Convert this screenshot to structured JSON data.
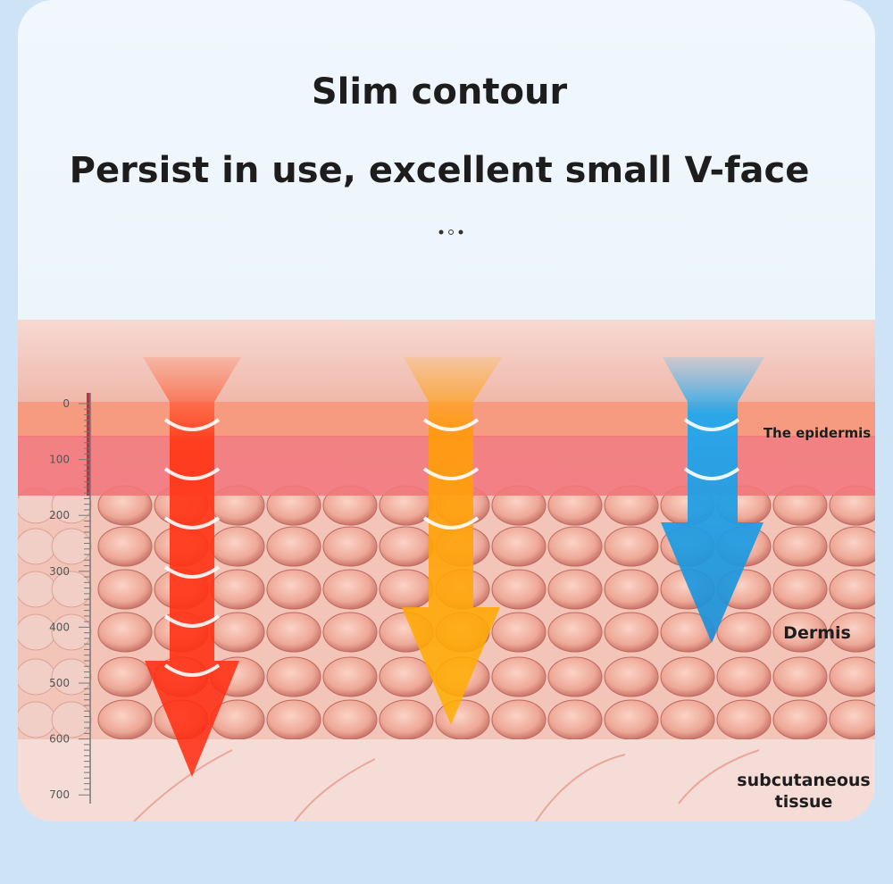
{
  "header": {
    "title": "Slim contour",
    "subtitle": "Persist in use, excellent small V-face"
  },
  "ruler": {
    "labels": [
      0,
      100,
      200,
      300,
      400,
      500,
      600,
      700
    ]
  },
  "layers": [
    {
      "label": "The epidermis"
    },
    {
      "label": "Dermis"
    },
    {
      "label": "subcutaneous tissue"
    }
  ]
}
